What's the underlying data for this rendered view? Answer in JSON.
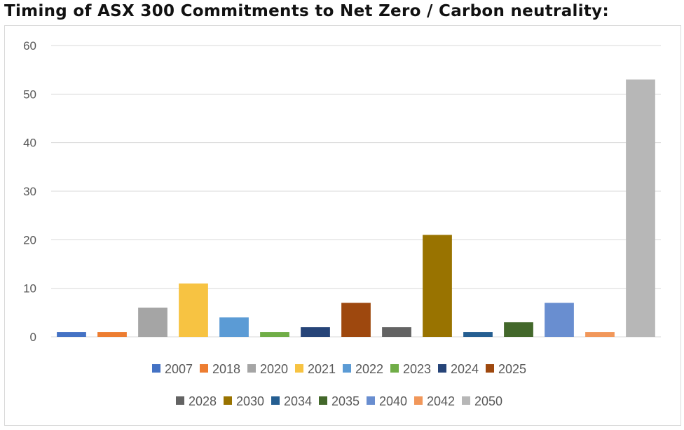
{
  "title": "Timing of ASX 300 Commitments to Net Zero / Carbon neutrality:",
  "chart_data": {
    "type": "bar",
    "categories": [
      "2007",
      "2018",
      "2020",
      "2021",
      "2022",
      "2023",
      "2024",
      "2025",
      "2028",
      "2030",
      "2034",
      "2035",
      "2040",
      "2042",
      "2050"
    ],
    "values": [
      1,
      1,
      6,
      11,
      4,
      1,
      2,
      7,
      2,
      21,
      1,
      3,
      7,
      1,
      53
    ],
    "colors": [
      "#4472c4",
      "#ed7d31",
      "#a5a5a5",
      "#f7c342",
      "#5b9bd5",
      "#70ad47",
      "#264478",
      "#9e480e",
      "#636363",
      "#997300",
      "#255e91",
      "#43682b",
      "#698ed0",
      "#f1975a",
      "#b7b7b7"
    ],
    "yticks": [
      "0",
      "10",
      "20",
      "30",
      "40",
      "50",
      "60"
    ],
    "ylim": [
      0,
      60
    ],
    "grid": true,
    "legend": "bottom",
    "xlabel": "",
    "ylabel": ""
  }
}
